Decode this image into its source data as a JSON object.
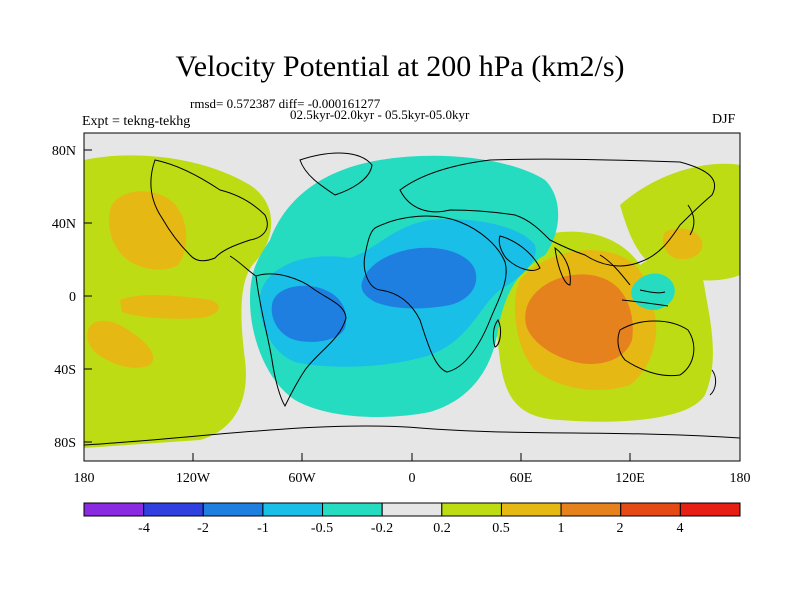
{
  "title": "Velocity Potential at 200 hPa (km2/s)",
  "stats_line": "rmsd= 0.572387 diff= -0.000161277",
  "periods_line": "02.5kyr-02.0kyr - 05.5kyr-05.0kyr",
  "expt_label": "Expt = tekng-tekhg",
  "season_label": "DJF",
  "lat_ticks": [
    "80N",
    "40N",
    "0",
    "40S",
    "80S"
  ],
  "lon_ticks": [
    "180",
    "120W",
    "60W",
    "0",
    "60E",
    "120E",
    "180"
  ],
  "colorbar": {
    "colors": [
      "#8a2be2",
      "#2f3fe0",
      "#1f7fe0",
      "#19bfe6",
      "#25dcc0",
      "#e6e6e6",
      "#bedc14",
      "#e6b814",
      "#e6821e",
      "#e64a14",
      "#e61e14"
    ],
    "labels": [
      "-4",
      "-2",
      "-1",
      "-0.5",
      "-0.2",
      "0.2",
      "0.5",
      "1",
      "2",
      "4"
    ]
  },
  "field_colors": {
    "background": "#e6e6e6",
    "neg_0_2": "#25dcc0",
    "neg_0_5": "#19bfe6",
    "neg_1": "#1f7fe0",
    "pos_0_2": "#bedc14",
    "pos_0_5": "#e6b814",
    "pos_1": "#e6821e"
  }
}
